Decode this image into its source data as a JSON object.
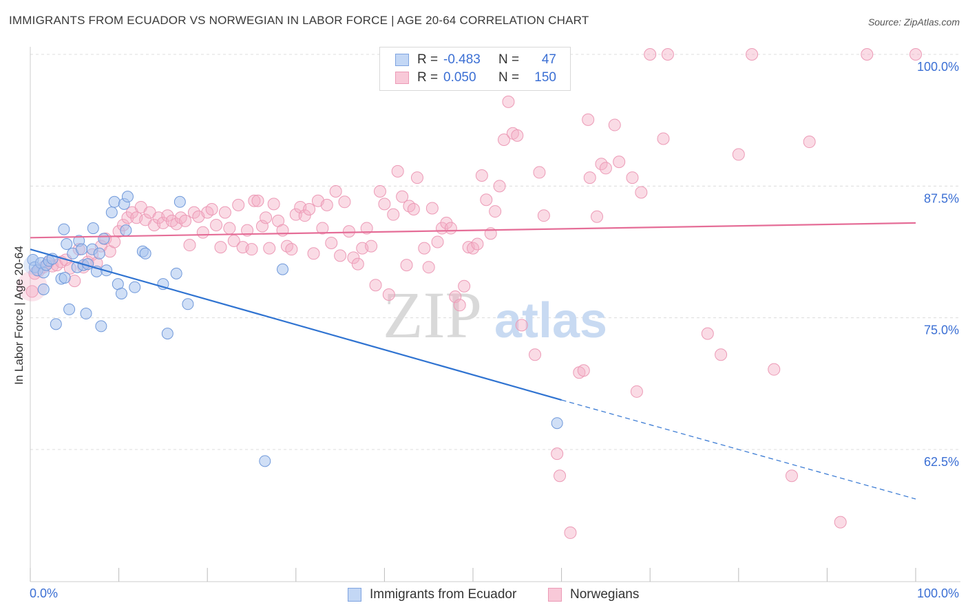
{
  "title": "IMMIGRANTS FROM ECUADOR VS NORWEGIAN IN LABOR FORCE | AGE 20-64 CORRELATION CHART",
  "source": "Source: ZipAtlas.com",
  "watermark": {
    "zip": "ZIP",
    "atlas": "atlas"
  },
  "legend_top": {
    "rows": [
      {
        "r_label": "R =",
        "r_value": "-0.483",
        "n_label": "N =",
        "n_value": "47"
      },
      {
        "r_label": "R =",
        "r_value": "0.050",
        "n_label": "N =",
        "n_value": "150"
      }
    ]
  },
  "legend_bottom": [
    "Immigrants from Ecuador",
    "Norwegians"
  ],
  "chart_data": {
    "type": "scatter",
    "title": "IMMIGRANTS FROM ECUADOR VS NORWEGIAN IN LABOR FORCE | AGE 20-64 CORRELATION CHART",
    "xlabel": "",
    "ylabel": "In Labor Force | Age 20-64",
    "xlim": [
      0,
      100
    ],
    "ylim": [
      50,
      100
    ],
    "x_tick_labels": [
      "0.0%",
      "100.0%"
    ],
    "y_ticks": [
      62.5,
      75.0,
      87.5,
      100.0
    ],
    "y_tick_labels": [
      "62.5%",
      "75.0%",
      "87.5%",
      "100.0%"
    ],
    "grid": true,
    "colors": {
      "ecuador": "#a9c4ee",
      "ecuador_line": "#2f73d1",
      "norwegians": "#f3afc6",
      "norwegians_line": "#e56d97",
      "tick_text": "#3b6fd4"
    },
    "series": [
      {
        "name": "Immigrants from Ecuador",
        "r": -0.483,
        "n": 47,
        "trend": {
          "x0": 0,
          "y0": 81.5,
          "x1": 60,
          "y1": 67.2,
          "dash_x1": 100,
          "dash_y1": 57.8
        },
        "points": [
          [
            0.3,
            80.5
          ],
          [
            0.5,
            79.8
          ],
          [
            0.8,
            79.5
          ],
          [
            1.2,
            80.2
          ],
          [
            1.5,
            79.3
          ],
          [
            1.8,
            80.0
          ],
          [
            2.1,
            80.4
          ],
          [
            2.5,
            80.6
          ],
          [
            1.5,
            77.7
          ],
          [
            2.9,
            74.4
          ],
          [
            3.5,
            78.7
          ],
          [
            3.9,
            78.8
          ],
          [
            3.8,
            83.4
          ],
          [
            4.1,
            82.0
          ],
          [
            4.4,
            75.8
          ],
          [
            4.8,
            81.1
          ],
          [
            5.3,
            79.8
          ],
          [
            5.5,
            82.3
          ],
          [
            5.8,
            81.5
          ],
          [
            6.0,
            80.0
          ],
          [
            6.3,
            75.4
          ],
          [
            6.5,
            80.1
          ],
          [
            7.0,
            81.5
          ],
          [
            7.1,
            83.5
          ],
          [
            7.5,
            79.4
          ],
          [
            7.8,
            81.1
          ],
          [
            8.0,
            74.2
          ],
          [
            8.3,
            82.5
          ],
          [
            8.6,
            79.5
          ],
          [
            9.2,
            85.0
          ],
          [
            9.5,
            86.0
          ],
          [
            9.9,
            78.2
          ],
          [
            10.3,
            77.3
          ],
          [
            10.6,
            85.8
          ],
          [
            10.8,
            83.3
          ],
          [
            11.0,
            86.5
          ],
          [
            11.8,
            77.9
          ],
          [
            12.7,
            81.3
          ],
          [
            13.0,
            81.1
          ],
          [
            15.0,
            78.2
          ],
          [
            15.5,
            73.5
          ],
          [
            16.5,
            79.2
          ],
          [
            16.9,
            86.0
          ],
          [
            17.8,
            76.3
          ],
          [
            26.5,
            61.4
          ],
          [
            28.5,
            79.6
          ],
          [
            59.5,
            65.0
          ]
        ]
      },
      {
        "name": "Norwegians",
        "r": 0.05,
        "n": 150,
        "trend": {
          "x0": 0,
          "y0": 82.6,
          "x1": 100,
          "y1": 84.0
        },
        "points": [
          [
            0.2,
            77.5
          ],
          [
            0.5,
            79.2
          ],
          [
            1.0,
            79.5
          ],
          [
            1.5,
            79.8
          ],
          [
            2.0,
            80.2
          ],
          [
            2.5,
            79.9
          ],
          [
            3.0,
            80.0
          ],
          [
            3.5,
            80.3
          ],
          [
            4.0,
            80.5
          ],
          [
            4.5,
            79.7
          ],
          [
            5.0,
            78.5
          ],
          [
            5.5,
            81.5
          ],
          [
            6.0,
            79.8
          ],
          [
            6.5,
            80.3
          ],
          [
            7.0,
            81.0
          ],
          [
            7.5,
            80.2
          ],
          [
            8.0,
            81.8
          ],
          [
            8.5,
            82.5
          ],
          [
            9.0,
            81.3
          ],
          [
            9.5,
            82.2
          ],
          [
            10.0,
            83.2
          ],
          [
            10.5,
            83.8
          ],
          [
            11.0,
            84.5
          ],
          [
            11.5,
            85.0
          ],
          [
            12.0,
            84.5
          ],
          [
            12.5,
            85.5
          ],
          [
            13.0,
            84.3
          ],
          [
            13.5,
            85.0
          ],
          [
            14.0,
            83.8
          ],
          [
            14.5,
            84.5
          ],
          [
            15.0,
            84.0
          ],
          [
            15.5,
            84.7
          ],
          [
            16.0,
            84.2
          ],
          [
            16.5,
            83.9
          ],
          [
            17.0,
            84.5
          ],
          [
            17.5,
            84.2
          ],
          [
            18.0,
            81.9
          ],
          [
            18.5,
            85.0
          ],
          [
            19.0,
            84.6
          ],
          [
            19.5,
            83.1
          ],
          [
            20.0,
            85.0
          ],
          [
            20.5,
            85.3
          ],
          [
            21.0,
            83.8
          ],
          [
            21.5,
            81.7
          ],
          [
            22.0,
            85.0
          ],
          [
            22.5,
            83.5
          ],
          [
            23.0,
            82.3
          ],
          [
            23.5,
            85.7
          ],
          [
            24.0,
            81.7
          ],
          [
            24.5,
            83.3
          ],
          [
            25.0,
            81.5
          ],
          [
            25.3,
            86.1
          ],
          [
            25.7,
            86.1
          ],
          [
            26.2,
            83.7
          ],
          [
            26.6,
            84.5
          ],
          [
            27.0,
            81.6
          ],
          [
            27.5,
            85.8
          ],
          [
            28.0,
            84.2
          ],
          [
            28.5,
            83.3
          ],
          [
            29.0,
            81.8
          ],
          [
            29.5,
            81.5
          ],
          [
            30.0,
            84.8
          ],
          [
            30.5,
            85.5
          ],
          [
            31.0,
            84.7
          ],
          [
            31.5,
            85.3
          ],
          [
            32.0,
            81.1
          ],
          [
            32.5,
            86.1
          ],
          [
            33.0,
            83.5
          ],
          [
            33.5,
            85.7
          ],
          [
            34.0,
            82.1
          ],
          [
            34.5,
            87.0
          ],
          [
            35.0,
            80.9
          ],
          [
            35.5,
            86.0
          ],
          [
            36.0,
            83.2
          ],
          [
            36.5,
            80.7
          ],
          [
            37.0,
            80.1
          ],
          [
            37.5,
            81.6
          ],
          [
            38.0,
            83.5
          ],
          [
            38.5,
            81.8
          ],
          [
            39.0,
            78.1
          ],
          [
            39.5,
            87.0
          ],
          [
            40.0,
            85.8
          ],
          [
            40.5,
            77.2
          ],
          [
            41.0,
            84.8
          ],
          [
            41.5,
            88.9
          ],
          [
            42.0,
            86.5
          ],
          [
            42.5,
            80.0
          ],
          [
            42.8,
            85.6
          ],
          [
            43.3,
            85.3
          ],
          [
            43.7,
            88.3
          ],
          [
            44.5,
            81.6
          ],
          [
            45.0,
            79.8
          ],
          [
            45.4,
            85.4
          ],
          [
            46.0,
            82.2
          ],
          [
            46.5,
            83.5
          ],
          [
            47.0,
            84.0
          ],
          [
            47.5,
            83.5
          ],
          [
            48.0,
            77.0
          ],
          [
            48.5,
            76.2
          ],
          [
            49.0,
            78.0
          ],
          [
            49.5,
            81.7
          ],
          [
            50.0,
            81.6
          ],
          [
            50.5,
            82.0
          ],
          [
            51.0,
            88.5
          ],
          [
            51.5,
            86.2
          ],
          [
            52.0,
            83.0
          ],
          [
            52.5,
            85.1
          ],
          [
            53.0,
            87.5
          ],
          [
            53.5,
            91.9
          ],
          [
            54.0,
            95.5
          ],
          [
            54.5,
            92.5
          ],
          [
            55.0,
            92.3
          ],
          [
            55.5,
            74.3
          ],
          [
            57.0,
            71.5
          ],
          [
            57.5,
            88.8
          ],
          [
            58.0,
            84.7
          ],
          [
            59.5,
            62.1
          ],
          [
            59.8,
            60.0
          ],
          [
            61.0,
            54.6
          ],
          [
            62.0,
            69.8
          ],
          [
            62.5,
            70.0
          ],
          [
            63.0,
            93.8
          ],
          [
            63.2,
            88.3
          ],
          [
            64.0,
            84.6
          ],
          [
            64.5,
            89.6
          ],
          [
            65.0,
            89.2
          ],
          [
            66.0,
            93.3
          ],
          [
            66.5,
            89.8
          ],
          [
            68.0,
            88.3
          ],
          [
            68.5,
            68.0
          ],
          [
            69.0,
            86.9
          ],
          [
            70.0,
            100.0
          ],
          [
            71.5,
            92.0
          ],
          [
            72.0,
            100.0
          ],
          [
            76.5,
            73.5
          ],
          [
            78.0,
            71.5
          ],
          [
            80.0,
            90.5
          ],
          [
            81.5,
            100.0
          ],
          [
            84.0,
            70.1
          ],
          [
            86.0,
            60.0
          ],
          [
            88.0,
            91.7
          ],
          [
            91.5,
            55.6
          ],
          [
            94.5,
            100.0
          ],
          [
            100.0,
            100.0
          ]
        ]
      }
    ]
  }
}
